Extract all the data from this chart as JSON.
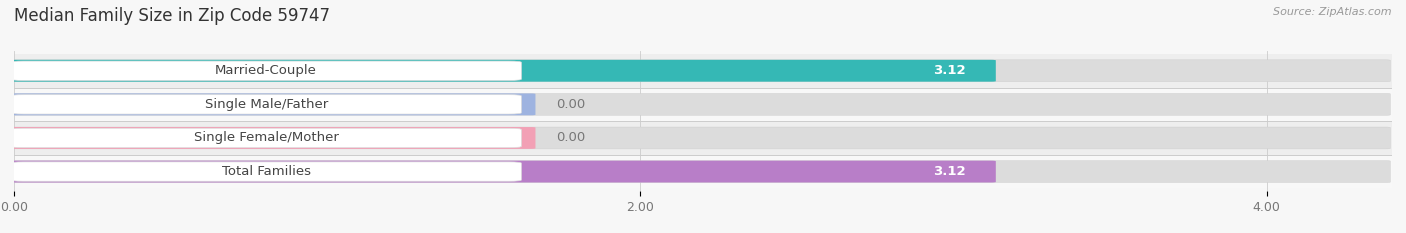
{
  "title": "Median Family Size in Zip Code 59747",
  "source": "Source: ZipAtlas.com",
  "categories": [
    "Married-Couple",
    "Single Male/Father",
    "Single Female/Mother",
    "Total Families"
  ],
  "values": [
    3.12,
    0.0,
    0.0,
    3.12
  ],
  "bar_colors": [
    "#35b8b5",
    "#9eb3e0",
    "#f2a0b5",
    "#b87ec8"
  ],
  "background_color": "#f7f7f7",
  "row_bg_even": "#efefef",
  "row_bg_odd": "#f7f7f7",
  "xlim": [
    0,
    4.4
  ],
  "xticks": [
    0.0,
    2.0,
    4.0
  ],
  "bar_height": 0.62,
  "value_fontsize": 9.5,
  "label_fontsize": 9.5,
  "title_fontsize": 12
}
